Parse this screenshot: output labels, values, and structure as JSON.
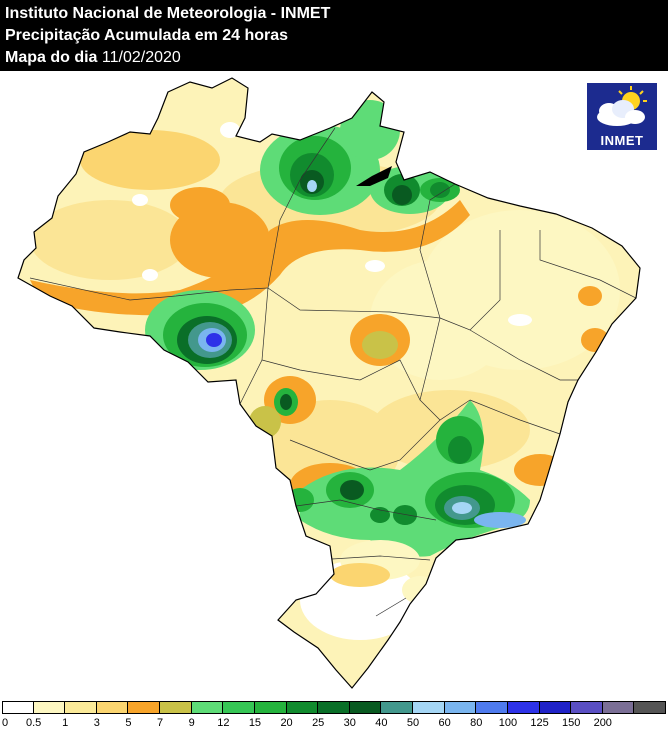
{
  "header": {
    "line1": "Instituto Nacional de Meteorologia - INMET",
    "line2": "Precipitação Acumulada em 24 horas",
    "line3_label": "Mapa do dia",
    "line3_date": "11/02/2020"
  },
  "logo": {
    "text": "INMET",
    "icon": "sun-cloud-icon"
  },
  "legend": {
    "colors": [
      "#ffffff",
      "#fdf7c2",
      "#fbea99",
      "#fbd570",
      "#f7a42a",
      "#c9c248",
      "#5edc77",
      "#36c655",
      "#25b33d",
      "#118b2e",
      "#0a6f28",
      "#095a21",
      "#43988d",
      "#a5d6f5",
      "#7ab5ef",
      "#4f7bee",
      "#2d32e8",
      "#1f22c7",
      "#5a4fc3",
      "#7b6f96",
      "#555555"
    ],
    "labels": [
      "0",
      "0.5",
      "1",
      "3",
      "5",
      "7",
      "9",
      "12",
      "15",
      "20",
      "25",
      "30",
      "40",
      "50",
      "60",
      "80",
      "100",
      "125",
      "150",
      "200"
    ]
  }
}
